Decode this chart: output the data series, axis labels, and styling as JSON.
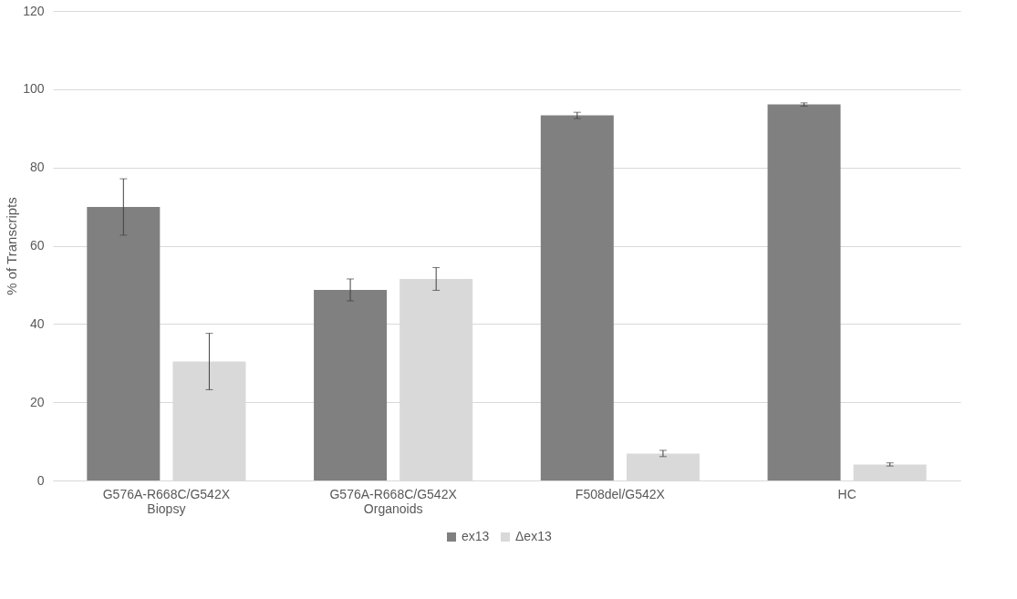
{
  "chart_data": {
    "type": "bar",
    "ylabel": "% of Transcripts",
    "categories": [
      "G576A-R668C/G542X\nBiopsy",
      "G576A-R668C/G542X\nOrganoids",
      "F508del/G542X",
      "HC"
    ],
    "series": [
      {
        "name": "ex13",
        "color": "#808080",
        "values": [
          69.9,
          48.7,
          93.3,
          96.1
        ],
        "errors": [
          7.2,
          2.8,
          0.8,
          0.4
        ]
      },
      {
        "name": "Δex13",
        "color": "#d9d9d9",
        "values": [
          30.4,
          51.5,
          6.9,
          4.1
        ],
        "errors": [
          7.2,
          2.9,
          0.8,
          0.4
        ]
      }
    ],
    "ylim": [
      0,
      120
    ],
    "yticks": [
      0,
      20,
      40,
      60,
      80,
      100,
      120
    ],
    "grid": "y",
    "legend": "bottom"
  }
}
